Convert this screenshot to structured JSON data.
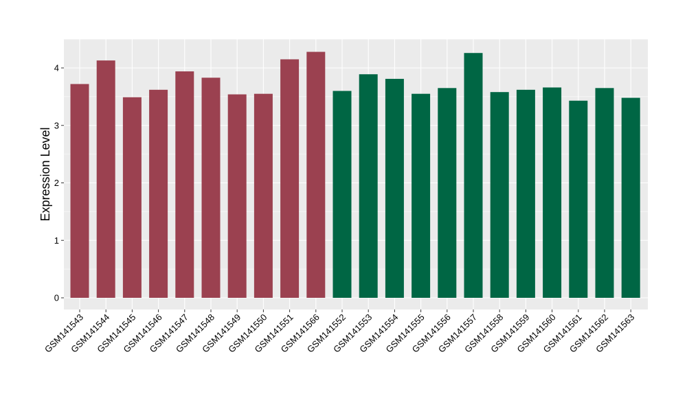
{
  "chart_data": {
    "type": "bar",
    "title": "",
    "xlabel": "",
    "ylabel": "Expression Level",
    "ylim": [
      0,
      4.5
    ],
    "yticks": [
      0,
      1,
      2,
      3,
      4
    ],
    "grid": true,
    "legend": "none",
    "colors": {
      "group1": "#9b4150",
      "group2": "#006644"
    },
    "categories": [
      "GSM141543",
      "GSM141544",
      "GSM141545",
      "GSM141546",
      "GSM141547",
      "GSM141548",
      "GSM141549",
      "GSM141550",
      "GSM141551",
      "GSM141566",
      "GSM141552",
      "GSM141553",
      "GSM141554",
      "GSM141555",
      "GSM141556",
      "GSM141557",
      "GSM141558",
      "GSM141559",
      "GSM141560",
      "GSM141561",
      "GSM141562",
      "GSM141563"
    ],
    "values": [
      3.72,
      4.13,
      3.49,
      3.62,
      3.94,
      3.83,
      3.54,
      3.55,
      4.15,
      4.28,
      3.6,
      3.89,
      3.81,
      3.55,
      3.65,
      4.26,
      3.58,
      3.62,
      3.66,
      3.43,
      3.65,
      3.48
    ],
    "group": [
      "group1",
      "group1",
      "group1",
      "group1",
      "group1",
      "group1",
      "group1",
      "group1",
      "group1",
      "group1",
      "group2",
      "group2",
      "group2",
      "group2",
      "group2",
      "group2",
      "group2",
      "group2",
      "group2",
      "group2",
      "group2",
      "group2"
    ]
  }
}
